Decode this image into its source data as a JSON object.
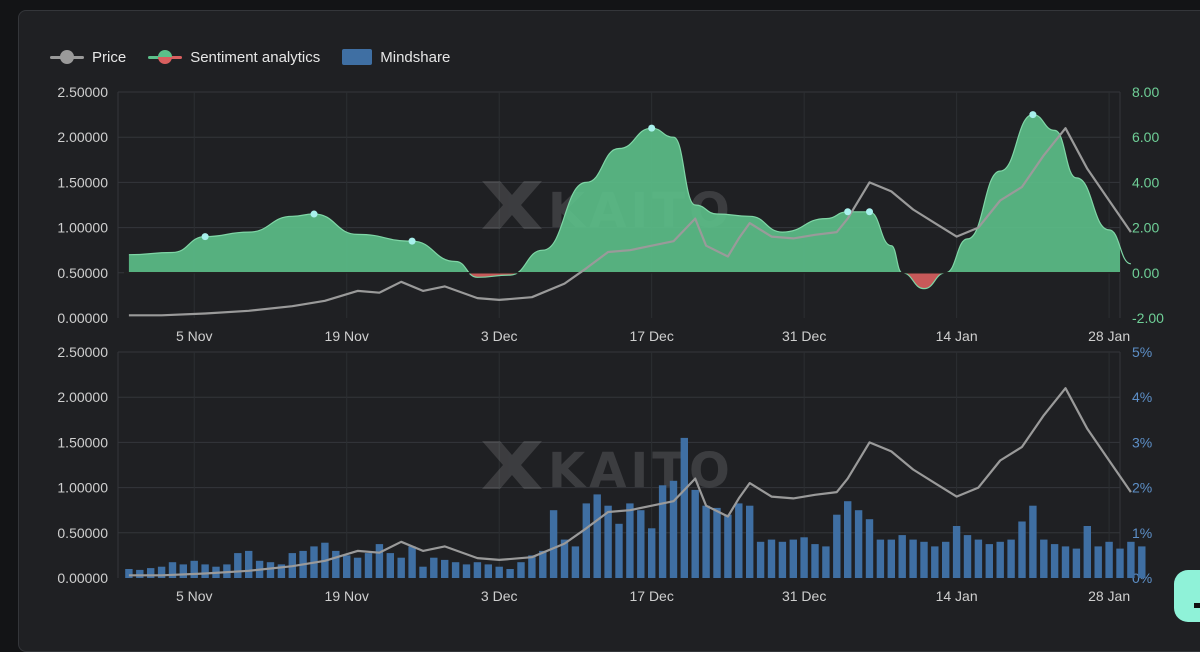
{
  "legend": {
    "price": "Price",
    "sentiment": "Sentiment analytics",
    "mindshare": "Mindshare"
  },
  "watermark": "KAITO",
  "colors": {
    "background": "#1f2023",
    "price_line": "#9a9a9a",
    "sentiment_positive": "#5cc08a",
    "sentiment_negative": "#d95f5f",
    "mindshare_bar": "#3f6fa3",
    "highlight_dot": "#a8f0ec",
    "sentiment_axis_text": "#6fcf97",
    "mindshare_axis_text": "#5d8fc7"
  },
  "chart_data": [
    {
      "type": "area",
      "xticks": [
        "5 Nov",
        "19 Nov",
        "3 Dec",
        "17 Dec",
        "31 Dec",
        "14 Jan",
        "28 Jan"
      ],
      "x_range": [
        "2023-10-29",
        "2024-01-29"
      ],
      "y_left": {
        "ticks": [
          "0.00000",
          "0.50000",
          "1.00000",
          "1.50000",
          "2.00000",
          "2.50000"
        ],
        "range": [
          0,
          2.5
        ]
      },
      "y_right": {
        "ticks": [
          "-2.00",
          "0.00",
          "2.00",
          "4.00",
          "6.00",
          "8.00"
        ],
        "range": [
          -2,
          8
        ]
      },
      "grid": true,
      "series": [
        {
          "name": "Price",
          "type": "line",
          "axis": "left",
          "points": [
            [
              "2023-10-30",
              0.03
            ],
            [
              "2023-11-02",
              0.03
            ],
            [
              "2023-11-06",
              0.05
            ],
            [
              "2023-11-10",
              0.08
            ],
            [
              "2023-11-14",
              0.13
            ],
            [
              "2023-11-17",
              0.19
            ],
            [
              "2023-11-20",
              0.3
            ],
            [
              "2023-11-22",
              0.28
            ],
            [
              "2023-11-24",
              0.4
            ],
            [
              "2023-11-26",
              0.3
            ],
            [
              "2023-11-28",
              0.35
            ],
            [
              "2023-12-01",
              0.22
            ],
            [
              "2023-12-03",
              0.2
            ],
            [
              "2023-12-06",
              0.23
            ],
            [
              "2023-12-09",
              0.38
            ],
            [
              "2023-12-11",
              0.55
            ],
            [
              "2023-12-13",
              0.73
            ],
            [
              "2023-12-15",
              0.75
            ],
            [
              "2023-12-17",
              0.8
            ],
            [
              "2023-12-19",
              0.85
            ],
            [
              "2023-12-21",
              1.1
            ],
            [
              "2023-12-22",
              0.8
            ],
            [
              "2023-12-24",
              0.68
            ],
            [
              "2023-12-25",
              0.88
            ],
            [
              "2023-12-26",
              1.05
            ],
            [
              "2023-12-28",
              0.9
            ],
            [
              "2023-12-30",
              0.88
            ],
            [
              "2024-01-01",
              0.92
            ],
            [
              "2024-01-03",
              0.95
            ],
            [
              "2024-01-04",
              1.1
            ],
            [
              "2024-01-06",
              1.5
            ],
            [
              "2024-01-08",
              1.4
            ],
            [
              "2024-01-10",
              1.2
            ],
            [
              "2024-01-12",
              1.05
            ],
            [
              "2024-01-14",
              0.9
            ],
            [
              "2024-01-16",
              1.0
            ],
            [
              "2024-01-18",
              1.3
            ],
            [
              "2024-01-20",
              1.45
            ],
            [
              "2024-01-22",
              1.8
            ],
            [
              "2024-01-24",
              2.1
            ],
            [
              "2024-01-26",
              1.65
            ],
            [
              "2024-01-28",
              1.3
            ],
            [
              "2024-01-30",
              0.95
            ]
          ]
        },
        {
          "name": "Sentiment analytics",
          "type": "area",
          "axis": "right",
          "points": [
            [
              "2023-10-30",
              0.8
            ],
            [
              "2023-11-03",
              0.9
            ],
            [
              "2023-11-06",
              1.6
            ],
            [
              "2023-11-10",
              1.8
            ],
            [
              "2023-11-14",
              2.5
            ],
            [
              "2023-11-16",
              2.6
            ],
            [
              "2023-11-20",
              1.7
            ],
            [
              "2023-11-25",
              1.4
            ],
            [
              "2023-11-29",
              0.5
            ],
            [
              "2023-12-01",
              -0.2
            ],
            [
              "2023-12-04",
              -0.1
            ],
            [
              "2023-12-07",
              1.0
            ],
            [
              "2023-12-11",
              4.0
            ],
            [
              "2023-12-14",
              5.5
            ],
            [
              "2023-12-17",
              6.4
            ],
            [
              "2023-12-19",
              6.0
            ],
            [
              "2023-12-21",
              3.0
            ],
            [
              "2023-12-23",
              2.6
            ],
            [
              "2023-12-26",
              2.5
            ],
            [
              "2023-12-29",
              1.8
            ],
            [
              "2024-01-02",
              2.4
            ],
            [
              "2024-01-04",
              2.7
            ],
            [
              "2024-01-06",
              2.7
            ],
            [
              "2024-01-08",
              1.2
            ],
            [
              "2024-01-09",
              0.0
            ],
            [
              "2024-01-11",
              -0.7
            ],
            [
              "2024-01-13",
              0.0
            ],
            [
              "2024-01-15",
              1.5
            ],
            [
              "2024-01-18",
              4.5
            ],
            [
              "2024-01-21",
              7.0
            ],
            [
              "2024-01-23",
              6.3
            ],
            [
              "2024-01-25",
              4.2
            ],
            [
              "2024-01-28",
              1.9
            ],
            [
              "2024-01-30",
              0.4
            ]
          ],
          "highlight_points": [
            [
              "2023-11-06",
              1.6
            ],
            [
              "2023-11-16",
              2.6
            ],
            [
              "2023-11-25",
              1.4
            ],
            [
              "2023-12-17",
              6.4
            ],
            [
              "2024-01-04",
              2.7
            ],
            [
              "2024-01-06",
              2.7
            ],
            [
              "2024-01-21",
              7.0
            ]
          ]
        }
      ]
    },
    {
      "type": "bar",
      "xticks": [
        "5 Nov",
        "19 Nov",
        "3 Dec",
        "17 Dec",
        "31 Dec",
        "14 Jan",
        "28 Jan"
      ],
      "x_range": [
        "2023-10-29",
        "2024-01-29"
      ],
      "y_left": {
        "ticks": [
          "0.00000",
          "0.50000",
          "1.00000",
          "1.50000",
          "2.00000",
          "2.50000"
        ],
        "range": [
          0,
          2.5
        ]
      },
      "y_right": {
        "ticks": [
          "0%",
          "1%",
          "2%",
          "3%",
          "4%",
          "5%"
        ],
        "range": [
          0,
          5
        ]
      },
      "grid": true,
      "series": [
        {
          "name": "Mindshare",
          "type": "bar",
          "axis": "right",
          "start": "2023-10-30",
          "interval_days": 1,
          "values": [
            0.2,
            0.18,
            0.22,
            0.25,
            0.35,
            0.3,
            0.38,
            0.3,
            0.25,
            0.3,
            0.55,
            0.6,
            0.38,
            0.35,
            0.3,
            0.55,
            0.6,
            0.7,
            0.78,
            0.6,
            0.5,
            0.45,
            0.55,
            0.75,
            0.55,
            0.45,
            0.7,
            0.25,
            0.45,
            0.4,
            0.35,
            0.3,
            0.35,
            0.3,
            0.25,
            0.2,
            0.35,
            0.5,
            0.6,
            1.5,
            0.85,
            0.7,
            1.65,
            1.85,
            1.6,
            1.2,
            1.65,
            1.5,
            1.1,
            2.05,
            2.15,
            3.1,
            1.95,
            1.6,
            1.55,
            1.4,
            1.65,
            1.6,
            0.8,
            0.85,
            0.8,
            0.85,
            0.9,
            0.75,
            0.7,
            1.4,
            1.7,
            1.5,
            1.3,
            0.85,
            0.85,
            0.95,
            0.85,
            0.8,
            0.7,
            0.8,
            1.15,
            0.95,
            0.85,
            0.75,
            0.8,
            0.85,
            1.25,
            1.6,
            0.85,
            0.75,
            0.7,
            0.65,
            1.15,
            0.7,
            0.8,
            0.65,
            0.8,
            0.7
          ]
        },
        {
          "name": "Price",
          "type": "line",
          "axis": "left",
          "points": [
            [
              "2023-10-30",
              0.03
            ],
            [
              "2023-11-02",
              0.03
            ],
            [
              "2023-11-06",
              0.05
            ],
            [
              "2023-11-10",
              0.08
            ],
            [
              "2023-11-14",
              0.13
            ],
            [
              "2023-11-17",
              0.19
            ],
            [
              "2023-11-20",
              0.3
            ],
            [
              "2023-11-22",
              0.28
            ],
            [
              "2023-11-24",
              0.4
            ],
            [
              "2023-11-26",
              0.3
            ],
            [
              "2023-11-28",
              0.35
            ],
            [
              "2023-12-01",
              0.22
            ],
            [
              "2023-12-03",
              0.2
            ],
            [
              "2023-12-06",
              0.23
            ],
            [
              "2023-12-09",
              0.38
            ],
            [
              "2023-12-11",
              0.55
            ],
            [
              "2023-12-13",
              0.73
            ],
            [
              "2023-12-15",
              0.75
            ],
            [
              "2023-12-17",
              0.8
            ],
            [
              "2023-12-19",
              0.85
            ],
            [
              "2023-12-21",
              1.1
            ],
            [
              "2023-12-22",
              0.8
            ],
            [
              "2023-12-24",
              0.68
            ],
            [
              "2023-12-25",
              0.88
            ],
            [
              "2023-12-26",
              1.05
            ],
            [
              "2023-12-28",
              0.9
            ],
            [
              "2023-12-30",
              0.88
            ],
            [
              "2024-01-01",
              0.92
            ],
            [
              "2024-01-03",
              0.95
            ],
            [
              "2024-01-04",
              1.1
            ],
            [
              "2024-01-06",
              1.5
            ],
            [
              "2024-01-08",
              1.4
            ],
            [
              "2024-01-10",
              1.2
            ],
            [
              "2024-01-12",
              1.05
            ],
            [
              "2024-01-14",
              0.9
            ],
            [
              "2024-01-16",
              1.0
            ],
            [
              "2024-01-18",
              1.3
            ],
            [
              "2024-01-20",
              1.45
            ],
            [
              "2024-01-22",
              1.8
            ],
            [
              "2024-01-24",
              2.1
            ],
            [
              "2024-01-26",
              1.65
            ],
            [
              "2024-01-28",
              1.3
            ],
            [
              "2024-01-30",
              0.95
            ]
          ]
        }
      ]
    }
  ]
}
